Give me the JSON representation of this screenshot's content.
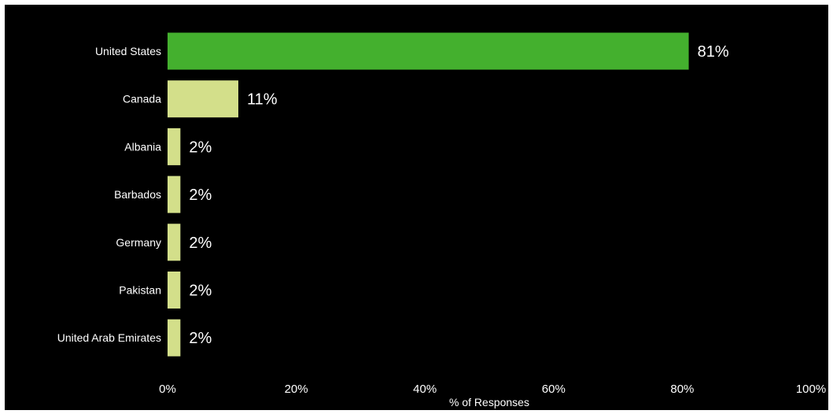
{
  "chart_data": {
    "type": "bar",
    "orientation": "horizontal",
    "categories": [
      "United States",
      "Canada",
      "Albania",
      "Barbados",
      "Germany",
      "Pakistan",
      "United Arab Emirates"
    ],
    "values": [
      81,
      11,
      2,
      2,
      2,
      2,
      2
    ],
    "data_labels": [
      "81%",
      "11%",
      "2%",
      "2%",
      "2%",
      "2%",
      "2%"
    ],
    "xlabel": "% of Responses",
    "ylabel": "",
    "xlim": [
      0,
      100
    ],
    "x_ticks": [
      0,
      20,
      40,
      60,
      80,
      100
    ],
    "x_tick_labels": [
      "0%",
      "20%",
      "40%",
      "60%",
      "80%",
      "100%"
    ],
    "grid": false,
    "legend": "none",
    "colors": {
      "background": "#000000",
      "highlight_bar": "#44b02e",
      "bar": "#d3df8a",
      "text": "#ffffff"
    }
  }
}
